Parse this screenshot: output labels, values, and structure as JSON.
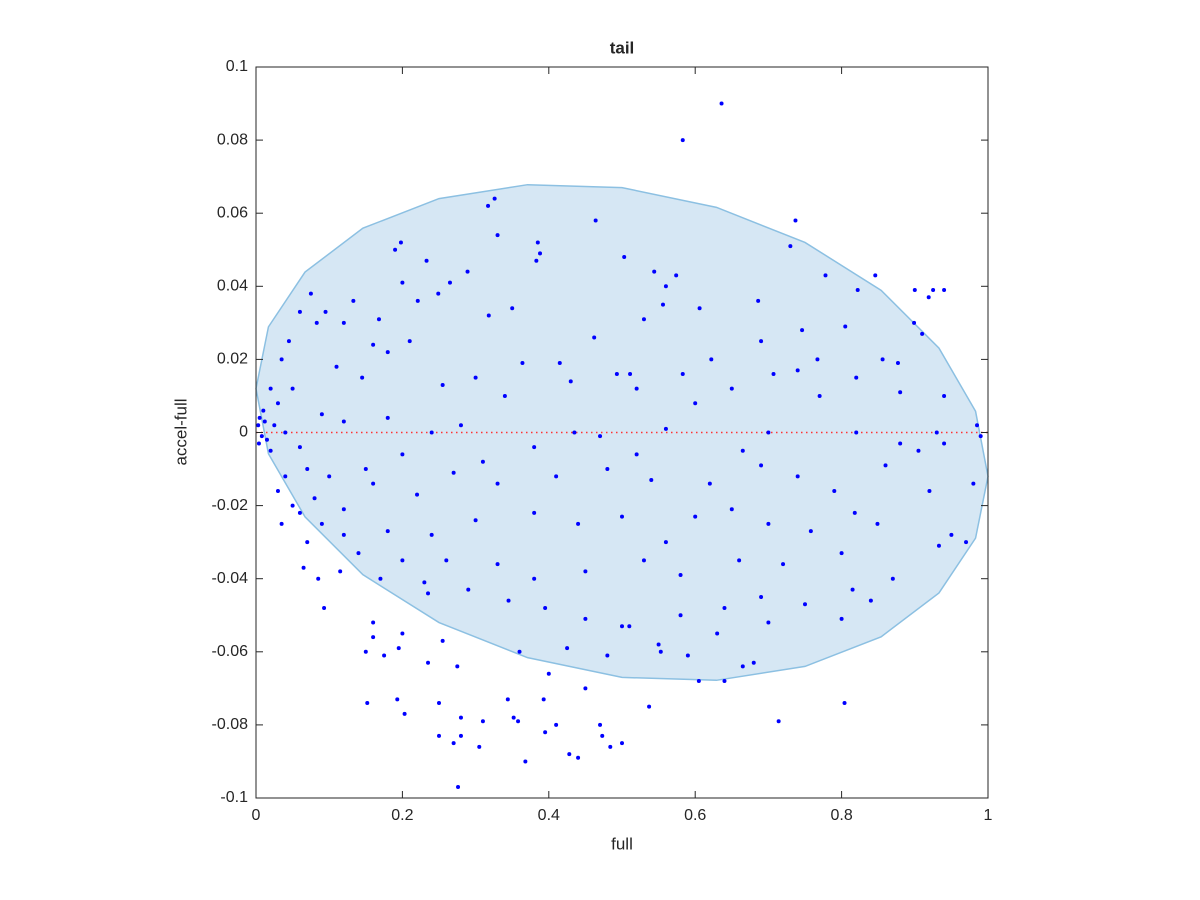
{
  "chart_data": {
    "type": "scatter",
    "title": "tail",
    "x_label": "full",
    "y_label": "accel-full",
    "xlim": [
      0,
      1
    ],
    "ylim": [
      -0.1,
      0.1
    ],
    "xticks": [
      0,
      0.2,
      0.4,
      0.6,
      0.8,
      1
    ],
    "yticks": [
      -0.1,
      -0.08,
      -0.06,
      -0.04,
      -0.02,
      0,
      0.02,
      0.04,
      0.06,
      0.08,
      0.1
    ],
    "ellipse": {
      "fill": "#d6e7f4",
      "color": "#8cc0e2",
      "x": [
        1,
        0.983,
        0.933,
        0.854,
        0.75,
        0.629,
        0.5,
        0.371,
        0.25,
        0.146,
        0.067,
        0.017,
        0,
        0.017,
        0.067,
        0.146,
        0.25,
        0.371,
        0.5,
        0.629,
        0.75,
        0.854,
        0.933,
        0.983
      ],
      "y": [
        -0.012,
        0.0058,
        0.0231,
        0.0389,
        0.052,
        0.0616,
        0.067,
        0.0678,
        0.064,
        0.0559,
        0.0439,
        0.0289,
        0.012,
        -0.0058,
        -0.0231,
        -0.0389,
        -0.052,
        -0.0616,
        -0.067,
        -0.0678,
        -0.064,
        -0.0559,
        -0.0439,
        -0.0289
      ]
    },
    "reference_line": {
      "color": "#ff3333",
      "x": [
        0,
        1
      ],
      "y": [
        0,
        0
      ]
    },
    "series": [
      {
        "color": "#0000ff",
        "x": [
          0.636,
          0.583,
          0.326,
          0.317,
          0.737,
          0.464,
          0.33,
          0.385,
          0.198,
          0.19,
          0.388,
          0.73,
          0.503,
          0.383,
          0.233,
          0.544,
          0.289,
          0.574,
          0.778,
          0.846,
          0.2,
          0.265,
          0.9,
          0.925,
          0.94,
          0.822,
          0.919,
          0.56,
          0.249,
          0.686,
          0.133,
          0.221,
          0.168,
          0.35,
          0.606,
          0.899,
          0.556,
          0.746,
          0.91,
          0.805,
          0.53,
          0.318,
          0.462,
          0.095,
          0.12,
          0.083,
          0.075,
          0.06,
          0.045,
          0.035,
          0.69,
          0.856,
          0.767,
          0.622,
          0.364,
          0.415,
          0.493,
          0.511,
          0.583,
          0.707,
          0.74,
          0.877,
          0.82,
          0.3,
          0.43,
          0.255,
          0.145,
          0.11,
          0.16,
          0.18,
          0.21,
          0.52,
          0.65,
          0.88,
          0.77,
          0.94,
          0.34,
          0.6,
          0.05,
          0.02,
          0.03,
          0.01,
          0.005,
          0.012,
          0.003,
          0.008,
          0.015,
          0.004,
          0.02,
          0.025,
          0.04,
          0.06,
          0.07,
          0.09,
          0.12,
          0.18,
          0.24,
          0.28,
          0.435,
          0.47,
          0.56,
          0.7,
          0.82,
          0.88,
          0.93,
          0.99,
          0.985,
          0.905,
          0.94,
          0.665,
          0.52,
          0.38,
          0.31,
          0.2,
          0.15,
          0.1,
          0.04,
          0.03,
          0.05,
          0.08,
          0.12,
          0.16,
          0.22,
          0.27,
          0.33,
          0.41,
          0.48,
          0.54,
          0.62,
          0.69,
          0.74,
          0.79,
          0.86,
          0.92,
          0.98,
          0.95,
          0.97,
          0.933,
          0.849,
          0.818,
          0.758,
          0.7,
          0.65,
          0.6,
          0.56,
          0.5,
          0.44,
          0.38,
          0.3,
          0.24,
          0.18,
          0.12,
          0.09,
          0.06,
          0.035,
          0.07,
          0.14,
          0.2,
          0.26,
          0.33,
          0.38,
          0.45,
          0.53,
          0.58,
          0.66,
          0.72,
          0.8,
          0.87,
          0.815,
          0.75,
          0.69,
          0.64,
          0.58,
          0.51,
          0.45,
          0.395,
          0.345,
          0.29,
          0.235,
          0.17,
          0.115,
          0.085,
          0.065,
          0.093,
          0.23,
          0.84,
          0.8,
          0.7,
          0.63,
          0.55,
          0.48,
          0.425,
          0.36,
          0.255,
          0.16,
          0.16,
          0.15,
          0.175,
          0.195,
          0.235,
          0.275,
          0.2,
          0.59,
          0.68,
          0.665,
          0.605,
          0.553,
          0.152,
          0.193,
          0.203,
          0.25,
          0.28,
          0.31,
          0.28,
          0.25,
          0.27,
          0.305,
          0.344,
          0.352,
          0.358,
          0.393,
          0.395,
          0.41,
          0.428,
          0.44,
          0.47,
          0.473,
          0.484,
          0.5,
          0.368,
          0.276,
          0.537,
          0.714,
          0.804,
          0.5,
          0.4,
          0.45,
          0.64
        ],
        "values": [
          0.09,
          0.08,
          0.064,
          0.062,
          0.058,
          0.058,
          0.054,
          0.052,
          0.052,
          0.05,
          0.049,
          0.051,
          0.048,
          0.047,
          0.047,
          0.044,
          0.044,
          0.043,
          0.043,
          0.043,
          0.041,
          0.041,
          0.039,
          0.039,
          0.039,
          0.039,
          0.037,
          0.04,
          0.038,
          0.036,
          0.036,
          0.036,
          0.031,
          0.034,
          0.034,
          0.03,
          0.035,
          0.028,
          0.027,
          0.029,
          0.031,
          0.032,
          0.026,
          0.033,
          0.03,
          0.03,
          0.038,
          0.033,
          0.025,
          0.02,
          0.025,
          0.02,
          0.02,
          0.02,
          0.019,
          0.019,
          0.016,
          0.016,
          0.016,
          0.016,
          0.017,
          0.019,
          0.015,
          0.015,
          0.014,
          0.013,
          0.015,
          0.018,
          0.024,
          0.022,
          0.025,
          0.012,
          0.012,
          0.011,
          0.01,
          0.01,
          0.01,
          0.008,
          0.012,
          0.012,
          0.008,
          0.006,
          0.004,
          0.003,
          0.002,
          -0.001,
          -0.002,
          -0.003,
          -0.005,
          0.002,
          0.0,
          -0.004,
          -0.01,
          0.005,
          0.003,
          0.004,
          0.0,
          0.002,
          0.0,
          -0.001,
          0.001,
          0.0,
          0.0,
          -0.003,
          0.0,
          -0.001,
          0.002,
          -0.005,
          -0.003,
          -0.005,
          -0.006,
          -0.004,
          -0.008,
          -0.006,
          -0.01,
          -0.012,
          -0.012,
          -0.016,
          -0.02,
          -0.018,
          -0.021,
          -0.014,
          -0.017,
          -0.011,
          -0.014,
          -0.012,
          -0.01,
          -0.013,
          -0.014,
          -0.009,
          -0.012,
          -0.016,
          -0.009,
          -0.016,
          -0.014,
          -0.028,
          -0.03,
          -0.031,
          -0.025,
          -0.022,
          -0.027,
          -0.025,
          -0.021,
          -0.023,
          -0.03,
          -0.023,
          -0.025,
          -0.022,
          -0.024,
          -0.028,
          -0.027,
          -0.028,
          -0.025,
          -0.022,
          -0.025,
          -0.03,
          -0.033,
          -0.035,
          -0.035,
          -0.036,
          -0.04,
          -0.038,
          -0.035,
          -0.039,
          -0.035,
          -0.036,
          -0.033,
          -0.04,
          -0.043,
          -0.047,
          -0.045,
          -0.048,
          -0.05,
          -0.053,
          -0.051,
          -0.048,
          -0.046,
          -0.043,
          -0.044,
          -0.04,
          -0.038,
          -0.04,
          -0.037,
          -0.048,
          -0.041,
          -0.046,
          -0.051,
          -0.052,
          -0.055,
          -0.058,
          -0.061,
          -0.059,
          -0.06,
          -0.057,
          -0.052,
          -0.056,
          -0.06,
          -0.061,
          -0.059,
          -0.063,
          -0.064,
          -0.055,
          -0.061,
          -0.063,
          -0.064,
          -0.068,
          -0.06,
          -0.074,
          -0.073,
          -0.077,
          -0.074,
          -0.078,
          -0.079,
          -0.083,
          -0.083,
          -0.085,
          -0.086,
          -0.073,
          -0.078,
          -0.079,
          -0.073,
          -0.082,
          -0.08,
          -0.088,
          -0.089,
          -0.08,
          -0.083,
          -0.086,
          -0.085,
          -0.09,
          -0.097,
          -0.075,
          -0.079,
          -0.074,
          -0.053,
          -0.066,
          -0.07,
          -0.068
        ]
      }
    ]
  }
}
